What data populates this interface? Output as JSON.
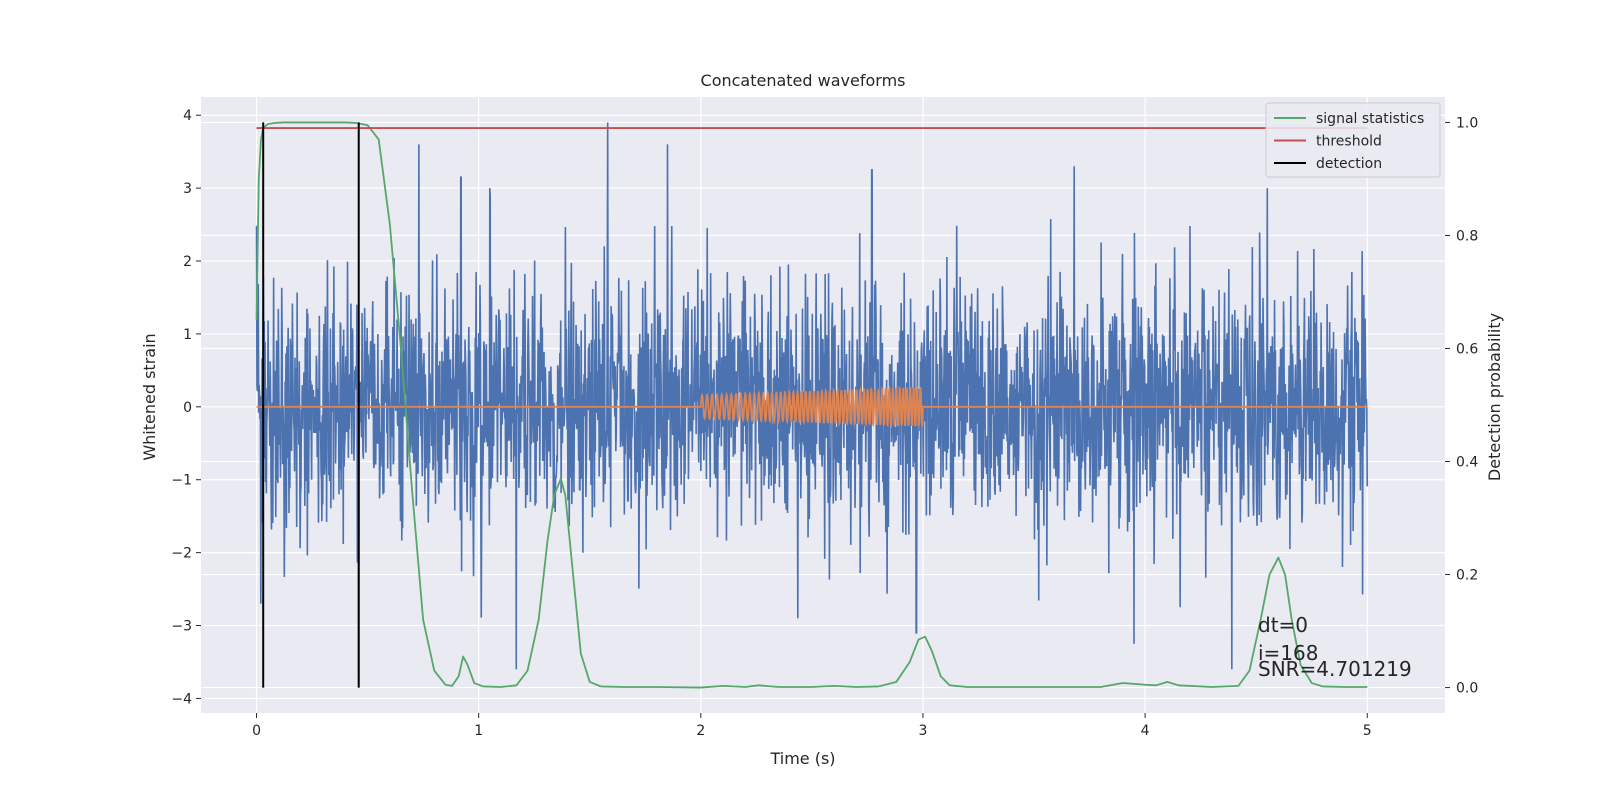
{
  "chart_data": {
    "type": "line",
    "title": "Concatenated waveforms",
    "xlabel": "Time (s)",
    "ylabel_left": "Whitened strain",
    "ylabel_right": "Detection probability",
    "xlim": [
      -0.25,
      5.35
    ],
    "ylim_left": [
      -4.2,
      4.25
    ],
    "ylim_right": [
      -0.045,
      1.045
    ],
    "x_ticks": [
      0,
      1,
      2,
      3,
      4,
      5
    ],
    "x_tick_labels": [
      "0",
      "1",
      "2",
      "3",
      "4",
      "5"
    ],
    "y_left_ticks": [
      4,
      3,
      2,
      1,
      0,
      -1,
      -2,
      -3,
      -4
    ],
    "y_left_tick_labels": [
      "4",
      "3",
      "2",
      "1",
      "0",
      "−1",
      "−2",
      "−3",
      "−4"
    ],
    "y_right_ticks": [
      1.0,
      0.8,
      0.6,
      0.4,
      0.2,
      0.0
    ],
    "y_right_tick_labels": [
      "1.0",
      "0.8",
      "0.6",
      "0.4",
      "0.2",
      "0.0"
    ],
    "grid": true,
    "legend_position": "top-right",
    "colors": {
      "strain": "#4c72b0",
      "template": "#dd8452",
      "signal_statistics": "#55a868",
      "threshold": "#c44e52",
      "detection": "#000000",
      "plot_bg": "#eaeaf2",
      "grid": "#ffffff"
    },
    "series": [
      {
        "name": "",
        "kind": "whitened_strain",
        "axis": "left",
        "x_range": [
          0,
          5
        ],
        "envelope_typical": 2.2,
        "noted_spikes": [
          {
            "x": 0.02,
            "y": -2.7
          },
          {
            "x": 0.46,
            "y": -3.8
          },
          {
            "x": 0.73,
            "y": 3.6
          },
          {
            "x": 0.92,
            "y": 3.15
          },
          {
            "x": 1.05,
            "y": 3.0
          },
          {
            "x": 1.17,
            "y": -3.6
          },
          {
            "x": 1.58,
            "y": 3.9
          },
          {
            "x": 1.85,
            "y": 3.6
          },
          {
            "x": 2.77,
            "y": 3.25
          },
          {
            "x": 2.97,
            "y": -3.1
          },
          {
            "x": 3.68,
            "y": 3.3
          },
          {
            "x": 3.95,
            "y": -3.25
          },
          {
            "x": 4.39,
            "y": -3.6
          },
          {
            "x": 4.55,
            "y": 3.0
          }
        ]
      },
      {
        "name": "",
        "kind": "template_waveform",
        "axis": "left",
        "x_range": [
          0,
          5
        ],
        "chirp_start": 2.0,
        "chirp_end": 3.0,
        "amplitude_start": 0.16,
        "amplitude_end": 0.27,
        "cycles": 55
      },
      {
        "name": "signal statistics",
        "axis": "right",
        "x": [
          0.0,
          0.01,
          0.02,
          0.03,
          0.05,
          0.08,
          0.12,
          0.2,
          0.3,
          0.4,
          0.45,
          0.5,
          0.55,
          0.6,
          0.65,
          0.7,
          0.75,
          0.8,
          0.85,
          0.88,
          0.91,
          0.93,
          0.95,
          0.98,
          1.02,
          1.1,
          1.17,
          1.22,
          1.27,
          1.31,
          1.34,
          1.37,
          1.39,
          1.42,
          1.46,
          1.5,
          1.55,
          1.65,
          1.8,
          2.0,
          2.1,
          2.2,
          2.26,
          2.35,
          2.5,
          2.6,
          2.7,
          2.8,
          2.88,
          2.94,
          2.98,
          3.01,
          3.04,
          3.08,
          3.12,
          3.2,
          3.5,
          3.8,
          3.9,
          4.0,
          4.05,
          4.1,
          4.15,
          4.3,
          4.42,
          4.47,
          4.52,
          4.56,
          4.6,
          4.63,
          4.66,
          4.7,
          4.75,
          4.8,
          4.9,
          5.0
        ],
        "y": [
          0.65,
          0.9,
          0.97,
          0.99,
          0.997,
          0.999,
          1.0,
          1.0,
          1.0,
          1.0,
          0.999,
          0.995,
          0.97,
          0.82,
          0.6,
          0.35,
          0.12,
          0.03,
          0.005,
          0.003,
          0.02,
          0.055,
          0.04,
          0.008,
          0.002,
          0.001,
          0.004,
          0.03,
          0.12,
          0.26,
          0.34,
          0.37,
          0.34,
          0.22,
          0.06,
          0.01,
          0.002,
          0.001,
          0.001,
          0.0,
          0.003,
          0.001,
          0.004,
          0.001,
          0.001,
          0.003,
          0.001,
          0.002,
          0.01,
          0.045,
          0.085,
          0.09,
          0.065,
          0.02,
          0.004,
          0.001,
          0.001,
          0.001,
          0.008,
          0.005,
          0.004,
          0.01,
          0.004,
          0.001,
          0.003,
          0.03,
          0.12,
          0.2,
          0.23,
          0.2,
          0.12,
          0.04,
          0.008,
          0.002,
          0.001,
          0.001
        ]
      },
      {
        "name": "threshold",
        "axis": "right",
        "x": [
          0,
          5
        ],
        "y": [
          0.99,
          0.99
        ]
      },
      {
        "name": "detection",
        "axis": "right",
        "vlines": [
          0.03,
          0.46
        ],
        "y_range": [
          0.0,
          1.0
        ]
      }
    ],
    "annotations": [
      "dt=0",
      "i=168",
      "SNR=4.701219"
    ]
  }
}
